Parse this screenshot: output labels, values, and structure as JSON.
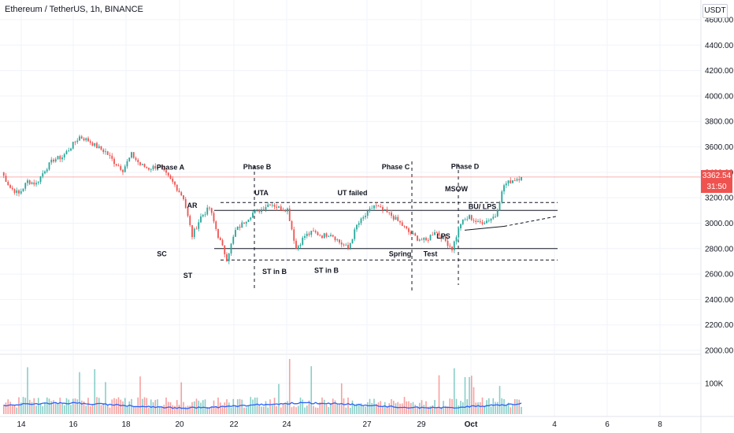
{
  "header": {
    "title": "Ethereum / TetherUS, 1h, BINANCE",
    "currency": "USDT"
  },
  "price_tag": {
    "price": "3362.54",
    "countdown": "31:50"
  },
  "colors": {
    "up": "#26a69a",
    "down": "#ef5350",
    "volume_ma": "#2962ff",
    "grid": "#f0f3fa",
    "annotation_line": "#131722",
    "price_line": "#ef5350"
  },
  "chart_data": {
    "type": "line",
    "price_axis": {
      "ticks": [
        "4600.00",
        "4400.00",
        "4200.00",
        "4000.00",
        "3800.00",
        "3600.00",
        "3400.00",
        "3200.00",
        "3000.00",
        "2800.00",
        "2600.00",
        "2400.00",
        "2200.00",
        "2000.00"
      ],
      "ylim": [
        2000,
        4700
      ]
    },
    "volume_axis": {
      "ticks": [
        "100K"
      ]
    },
    "x_axis": {
      "ticks": [
        "14",
        "16",
        "18",
        "20",
        "22",
        "24",
        "27",
        "29",
        "Oct",
        "4",
        "6",
        "8"
      ]
    },
    "series": [
      {
        "values": [
          [
            0,
            3400
          ],
          [
            1,
            3280
          ],
          [
            2,
            3230
          ],
          [
            3,
            3330
          ],
          [
            4,
            3310
          ],
          [
            5,
            3420
          ],
          [
            6,
            3500
          ],
          [
            7,
            3520
          ],
          [
            8,
            3600
          ],
          [
            9,
            3680
          ],
          [
            10,
            3650
          ],
          [
            11,
            3600
          ],
          [
            12,
            3560
          ],
          [
            13,
            3480
          ],
          [
            14,
            3420
          ],
          [
            15,
            3540
          ],
          [
            16,
            3460
          ],
          [
            17,
            3430
          ],
          [
            18,
            3450
          ],
          [
            19,
            3380
          ],
          [
            20,
            3300
          ],
          [
            21,
            3200
          ],
          [
            22,
            2900
          ],
          [
            23,
            3050
          ],
          [
            24,
            3120
          ],
          [
            25,
            2900
          ],
          [
            26,
            2720
          ],
          [
            27,
            2940
          ],
          [
            28,
            3010
          ],
          [
            29,
            3080
          ],
          [
            30,
            3110
          ],
          [
            31,
            3160
          ],
          [
            32,
            3120
          ],
          [
            33,
            3110
          ],
          [
            34,
            2800
          ],
          [
            35,
            2900
          ],
          [
            36,
            2930
          ],
          [
            37,
            2900
          ],
          [
            38,
            2920
          ],
          [
            39,
            2850
          ],
          [
            40,
            2800
          ],
          [
            41,
            2980
          ],
          [
            42,
            3060
          ],
          [
            43,
            3140
          ],
          [
            44,
            3100
          ],
          [
            45,
            3060
          ],
          [
            46,
            3000
          ],
          [
            47,
            2930
          ],
          [
            48,
            2880
          ],
          [
            49,
            2860
          ],
          [
            50,
            2940
          ],
          [
            51,
            2880
          ],
          [
            52,
            2800
          ],
          [
            53,
            3000
          ],
          [
            54,
            3050
          ],
          [
            55,
            3000
          ],
          [
            56,
            3020
          ],
          [
            57,
            3060
          ],
          [
            58,
            3300
          ],
          [
            59,
            3340
          ],
          [
            60,
            3362.54
          ]
        ]
      }
    ],
    "levels": [
      {
        "price": 3162,
        "style": "dashed"
      },
      {
        "price": 3100,
        "style": "solid"
      },
      {
        "price": 2800,
        "style": "solid"
      },
      {
        "price": 2710,
        "style": "dashed"
      }
    ],
    "annotations": [
      {
        "label": "Phase A",
        "x": 19.5,
        "price": 3420
      },
      {
        "label": "Phase B",
        "x": 29.5,
        "price": 3425
      },
      {
        "label": "Phase C",
        "x": 45.5,
        "price": 3425
      },
      {
        "label": "Phase D",
        "x": 53.5,
        "price": 3427
      },
      {
        "label": "AR",
        "x": 22.0,
        "price": 3120
      },
      {
        "label": "UTA",
        "x": 30.0,
        "price": 3220
      },
      {
        "label": "UT failed",
        "x": 40.5,
        "price": 3220
      },
      {
        "label": "MSOW",
        "x": 52.5,
        "price": 3250
      },
      {
        "label": "BU/ LPS",
        "x": 55.5,
        "price": 3110
      },
      {
        "label": "LPS",
        "x": 51.0,
        "price": 2880
      },
      {
        "label": "SC",
        "x": 18.5,
        "price": 2740
      },
      {
        "label": "Spring",
        "x": 46.0,
        "price": 2740
      },
      {
        "label": "Test",
        "x": 49.5,
        "price": 2740
      },
      {
        "label": "ST",
        "x": 21.5,
        "price": 2570
      },
      {
        "label": "ST in B",
        "x": 31.5,
        "price": 2600
      },
      {
        "label": "ST in B",
        "x": 37.5,
        "price": 2610
      }
    ]
  }
}
